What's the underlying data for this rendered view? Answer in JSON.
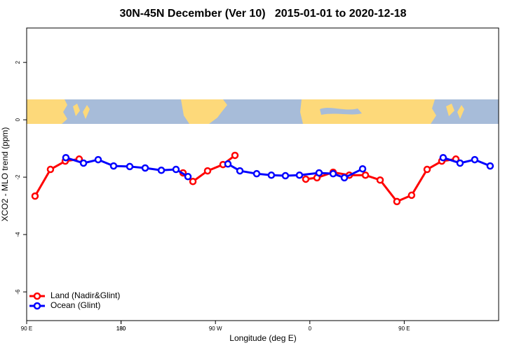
{
  "chart_data": {
    "type": "line",
    "title": "30N-45N December (Ver 10)   2015-01-01 to 2020-12-18",
    "xlabel": "Longitude (deg E)",
    "ylabel": "XCO2 - MLO trend (ppm)",
    "xlim": [
      90,
      540
    ],
    "ylim": [
      -7,
      3.2
    ],
    "xticks": [
      {
        "value": 90,
        "label": "90 E"
      },
      180,
      {
        "value": 270,
        "label": "90 W"
      },
      {
        "value": 360,
        "label": "0"
      },
      {
        "value": 450,
        "label": "90 E"
      },
      180.0001
    ],
    "yticks": [
      2,
      0,
      -2,
      -4,
      -6
    ],
    "legend": "bottom-left",
    "series": [
      {
        "name": "Land (Nadir&Glint)",
        "color": "#ff0000",
        "x": [
          98,
          112.7,
          126.8,
          140.1,
          null,
          239.1,
          248.5,
          262.5,
          277.2,
          288.6,
          null,
          356.1,
          366.8,
          382.2,
          397.6,
          413,
          427,
          443,
          457,
          471.8,
          485.8,
          499.2
        ],
        "values": [
          -2.66,
          -1.73,
          -1.44,
          -1.37,
          null,
          -1.85,
          -2.15,
          -1.78,
          -1.56,
          -1.24,
          null,
          -2.07,
          -2.02,
          -1.83,
          -1.93,
          -1.93,
          -2.1,
          -2.85,
          -2.63,
          -1.73,
          -1.44,
          -1.37
        ]
      },
      {
        "name": "Ocean (Glint)",
        "color": "#0000ff",
        "x": [
          127.4,
          144.2,
          158.2,
          172.9,
          188.3,
          203,
          218.4,
          232.4,
          243.8,
          null,
          281.9,
          293.3,
          309.3,
          323.3,
          336.7,
          350.1,
          368.8,
          382.2,
          392.9,
          410.3,
          null,
          487.1,
          503.2,
          517.2,
          531.9
        ],
        "values": [
          -1.32,
          -1.51,
          -1.39,
          -1.61,
          -1.63,
          -1.68,
          -1.76,
          -1.73,
          -1.98,
          null,
          -1.54,
          -1.78,
          -1.88,
          -1.93,
          -1.95,
          -1.93,
          -1.85,
          -1.88,
          -2.02,
          -1.71,
          null,
          -1.32,
          -1.51,
          -1.39,
          -1.61
        ]
      }
    ]
  }
}
